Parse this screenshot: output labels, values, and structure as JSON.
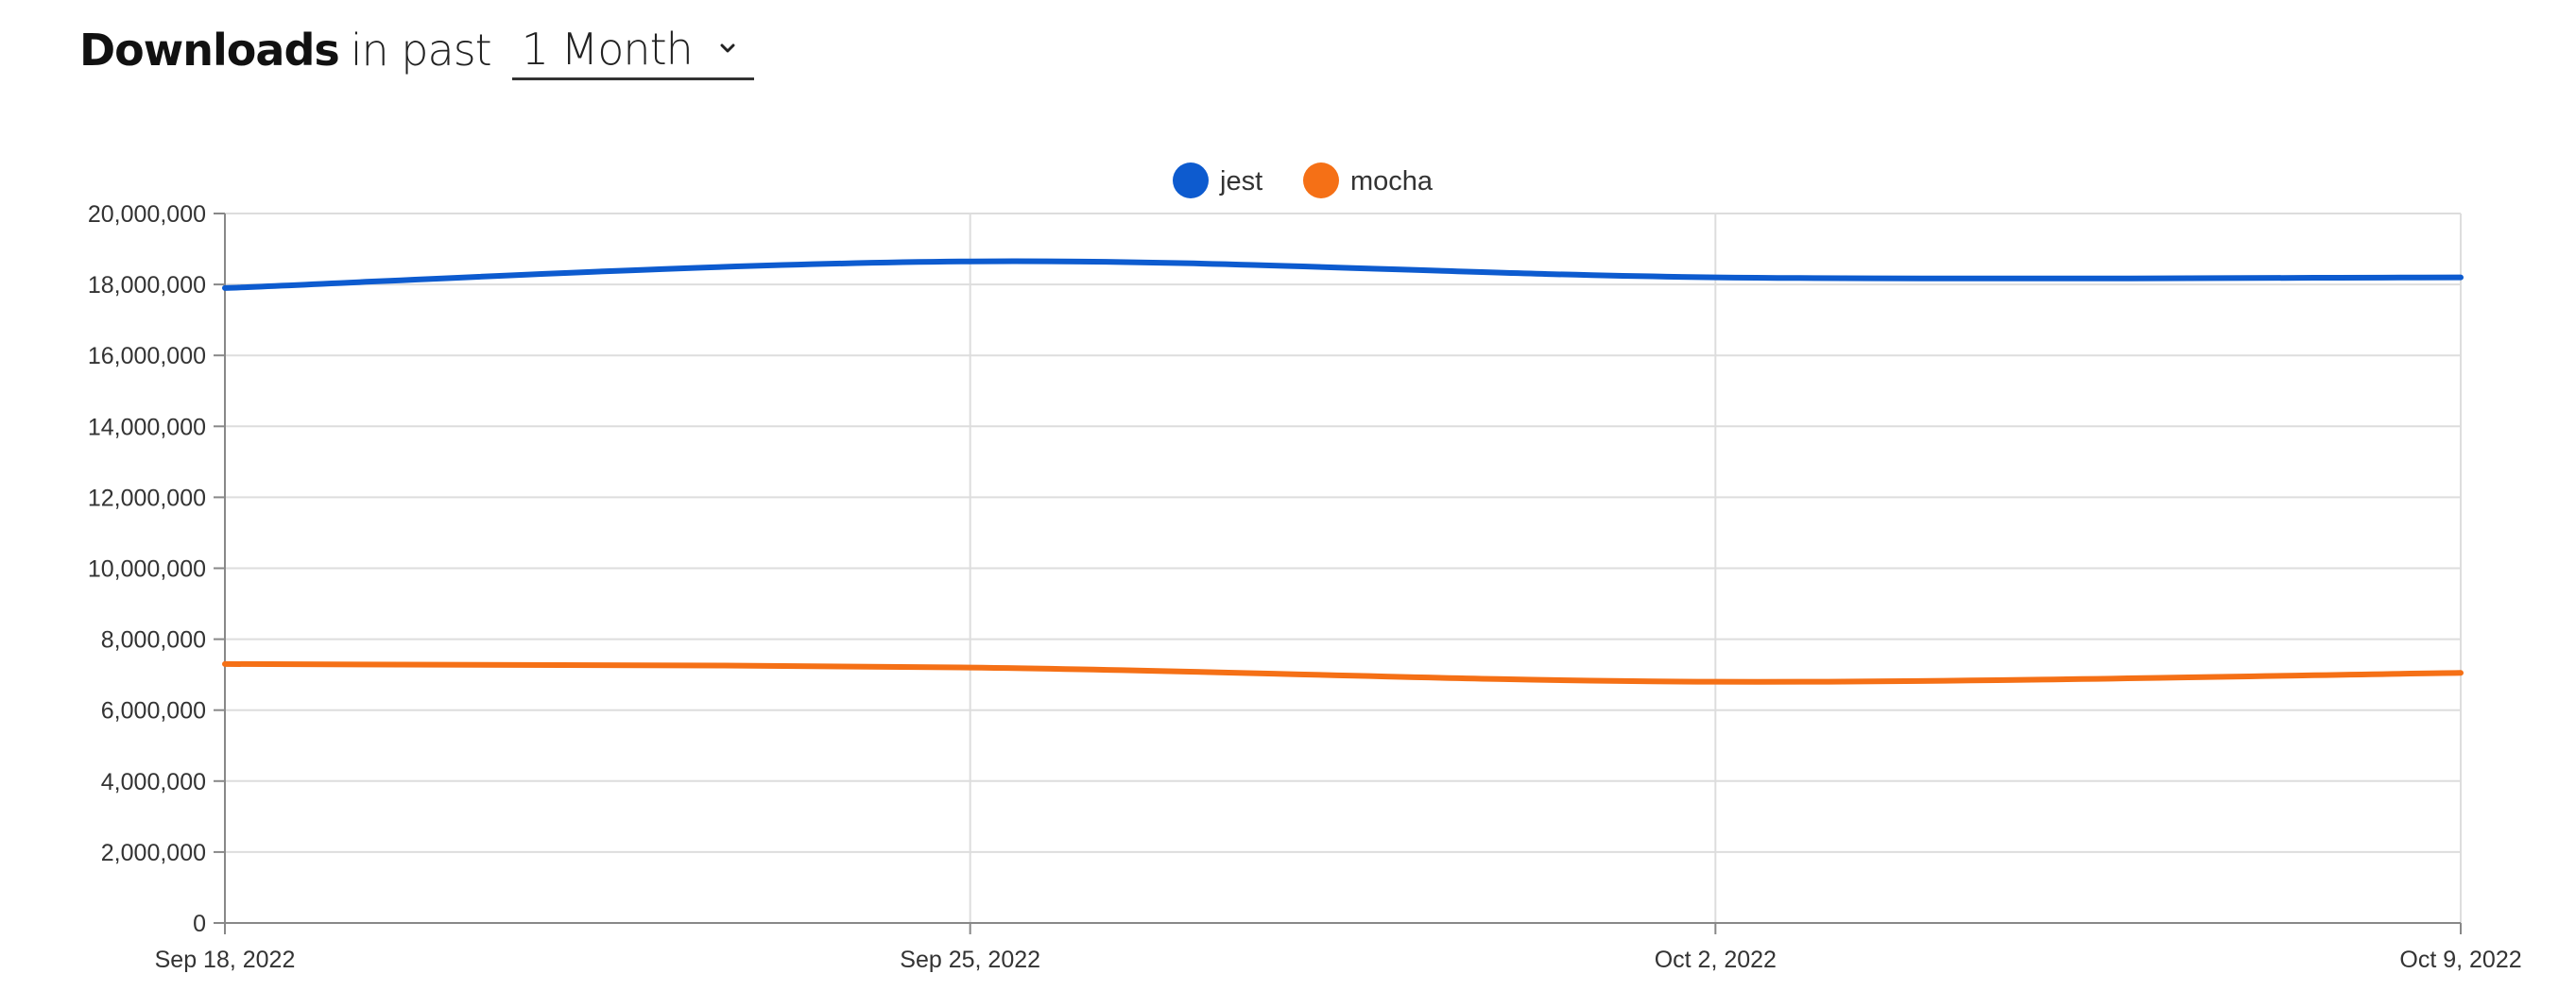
{
  "header": {
    "title_strong": "Downloads",
    "title_rest": "in past",
    "period_selected": "1 Month"
  },
  "icons": {
    "period_chevron": "chevron-down-icon"
  },
  "colors": {
    "jest": "#0d5bcf",
    "mocha": "#f57016",
    "grid": "#dddddd",
    "axis": "#888888",
    "text": "#333333"
  },
  "chart_data": {
    "type": "line",
    "x": [
      "Sep 18, 2022",
      "Sep 25, 2022",
      "Oct 2, 2022",
      "Oct 9, 2022"
    ],
    "series": [
      {
        "name": "jest",
        "values": [
          17900000,
          18650000,
          18200000,
          18200000
        ]
      },
      {
        "name": "mocha",
        "values": [
          7300000,
          7200000,
          6800000,
          7050000
        ]
      }
    ],
    "ylim": [
      0,
      20000000
    ],
    "yticks": [
      {
        "value": 0,
        "label": "0"
      },
      {
        "value": 2000000,
        "label": "2,000,000"
      },
      {
        "value": 4000000,
        "label": "4,000,000"
      },
      {
        "value": 6000000,
        "label": "6,000,000"
      },
      {
        "value": 8000000,
        "label": "8,000,000"
      },
      {
        "value": 10000000,
        "label": "10,000,000"
      },
      {
        "value": 12000000,
        "label": "12,000,000"
      },
      {
        "value": 14000000,
        "label": "14,000,000"
      },
      {
        "value": 16000000,
        "label": "16,000,000"
      },
      {
        "value": 18000000,
        "label": "18,000,000"
      },
      {
        "value": 20000000,
        "label": "20,000,000"
      }
    ],
    "grid": true,
    "legend_position": "top-center",
    "title": "",
    "xlabel": "",
    "ylabel": ""
  }
}
